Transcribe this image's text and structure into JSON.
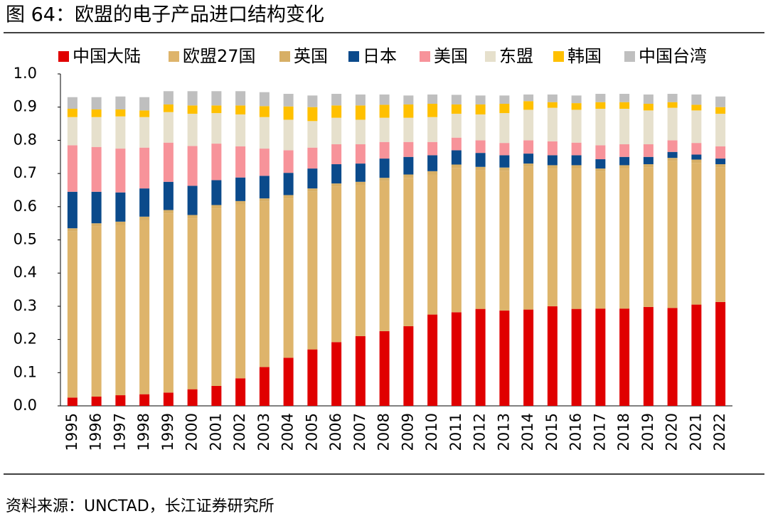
{
  "chart_data": {
    "type": "stacked_bar",
    "title": "图 64：欧盟的电子产品进口结构变化",
    "source": "资料来源：UNCTAD，长江证券研究所",
    "categories": [
      "1995",
      "1996",
      "1997",
      "1998",
      "1999",
      "2000",
      "2001",
      "2002",
      "2003",
      "2004",
      "2005",
      "2006",
      "2007",
      "2008",
      "2009",
      "2010",
      "2011",
      "2012",
      "2013",
      "2014",
      "2015",
      "2016",
      "2017",
      "2018",
      "2019",
      "2020",
      "2021",
      "2022"
    ],
    "series": [
      {
        "name": "中国大陆",
        "color": "#e00000",
        "values": [
          0.025,
          0.028,
          0.032,
          0.035,
          0.04,
          0.05,
          0.06,
          0.083,
          0.117,
          0.145,
          0.17,
          0.192,
          0.21,
          0.225,
          0.24,
          0.275,
          0.282,
          0.292,
          0.287,
          0.29,
          0.3,
          0.292,
          0.293,
          0.293,
          0.298,
          0.295,
          0.305,
          0.313
        ]
      },
      {
        "name": "欧盟27国",
        "color": "#deb46b",
        "values": [
          0.5,
          0.512,
          0.513,
          0.525,
          0.54,
          0.515,
          0.535,
          0.524,
          0.498,
          0.48,
          0.475,
          0.468,
          0.455,
          0.452,
          0.447,
          0.422,
          0.435,
          0.418,
          0.421,
          0.43,
          0.415,
          0.423,
          0.412,
          0.422,
          0.42,
          0.442,
          0.427,
          0.405
        ]
      },
      {
        "name": "英国",
        "color": "#d7af66",
        "values": [
          0.01,
          0.01,
          0.01,
          0.01,
          0.01,
          0.01,
          0.01,
          0.01,
          0.01,
          0.01,
          0.01,
          0.01,
          0.01,
          0.01,
          0.01,
          0.01,
          0.01,
          0.01,
          0.01,
          0.01,
          0.01,
          0.01,
          0.01,
          0.01,
          0.01,
          0.01,
          0.01,
          0.01
        ]
      },
      {
        "name": "日本",
        "color": "#0b4a8b",
        "values": [
          0.11,
          0.095,
          0.088,
          0.085,
          0.085,
          0.088,
          0.075,
          0.071,
          0.068,
          0.067,
          0.06,
          0.058,
          0.055,
          0.058,
          0.053,
          0.048,
          0.043,
          0.042,
          0.037,
          0.03,
          0.03,
          0.03,
          0.028,
          0.025,
          0.022,
          0.018,
          0.015,
          0.017
        ]
      },
      {
        "name": "美国",
        "color": "#f7939a",
        "values": [
          0.14,
          0.135,
          0.132,
          0.123,
          0.118,
          0.12,
          0.11,
          0.094,
          0.082,
          0.068,
          0.063,
          0.06,
          0.058,
          0.05,
          0.045,
          0.04,
          0.038,
          0.038,
          0.037,
          0.04,
          0.042,
          0.038,
          0.042,
          0.038,
          0.038,
          0.035,
          0.035,
          0.037
        ]
      },
      {
        "name": "东盟",
        "color": "#e6e0cc",
        "values": [
          0.085,
          0.09,
          0.097,
          0.092,
          0.092,
          0.097,
          0.092,
          0.096,
          0.095,
          0.092,
          0.08,
          0.08,
          0.074,
          0.073,
          0.073,
          0.075,
          0.072,
          0.078,
          0.09,
          0.092,
          0.101,
          0.099,
          0.11,
          0.107,
          0.102,
          0.098,
          0.098,
          0.098
        ]
      },
      {
        "name": "韩国",
        "color": "#ffc000",
        "values": [
          0.025,
          0.023,
          0.021,
          0.02,
          0.023,
          0.025,
          0.023,
          0.027,
          0.033,
          0.04,
          0.042,
          0.037,
          0.043,
          0.039,
          0.04,
          0.04,
          0.028,
          0.03,
          0.028,
          0.026,
          0.017,
          0.02,
          0.02,
          0.02,
          0.02,
          0.017,
          0.017,
          0.02
        ]
      },
      {
        "name": "中国台湾",
        "color": "#bfbfbf",
        "values": [
          0.035,
          0.037,
          0.039,
          0.04,
          0.04,
          0.043,
          0.043,
          0.043,
          0.042,
          0.038,
          0.035,
          0.035,
          0.033,
          0.031,
          0.027,
          0.028,
          0.029,
          0.027,
          0.025,
          0.02,
          0.023,
          0.023,
          0.025,
          0.025,
          0.028,
          0.025,
          0.031,
          0.032
        ]
      }
    ],
    "ylim": [
      0,
      1
    ],
    "yticks": [
      {
        "value": 0,
        "label": "0.0"
      },
      0.1,
      0.2,
      0.3,
      0.4,
      0.5,
      0.6,
      0.7,
      0.8,
      0.9,
      {
        "value": 1,
        "label": "1.0"
      }
    ],
    "grid": false,
    "legend": "top"
  }
}
